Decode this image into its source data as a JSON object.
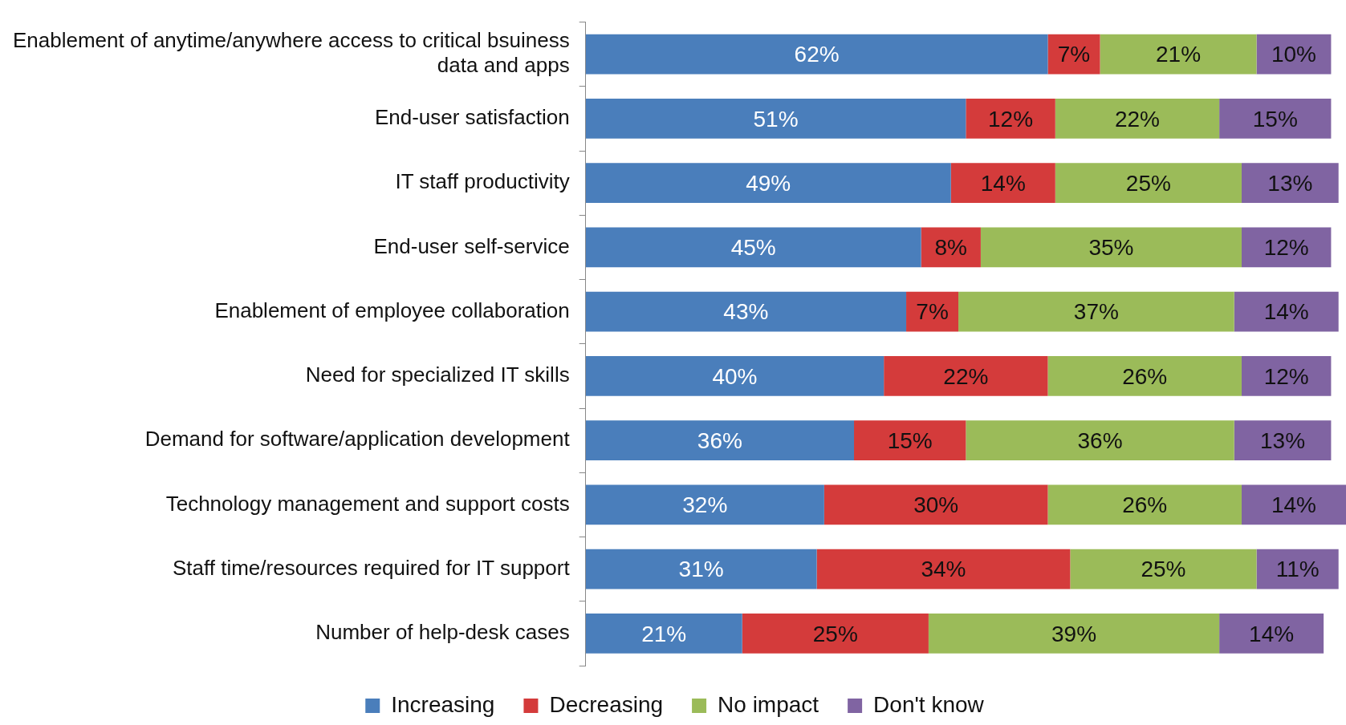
{
  "chart_data": {
    "type": "bar",
    "orientation": "horizontal",
    "stacked": true,
    "tick_labels": "y",
    "legend": "bottom",
    "categories": [
      "Enablement of anytime/anywhere access to critical bsuiness data and apps",
      "End-user satisfaction",
      "IT staff productivity",
      "End-user self-service",
      "Enablement of employee collaboration",
      "Need for specialized IT skills",
      "Demand for software/application development",
      "Technology management and support costs",
      "Staff time/resources required for IT support",
      "Number of help-desk cases"
    ],
    "series": [
      {
        "name": "Increasing",
        "color": "#4a7ebb",
        "values": [
          62,
          51,
          49,
          45,
          43,
          40,
          36,
          32,
          31,
          21
        ],
        "value_labels": [
          "62%",
          "51%",
          "49%",
          "45%",
          "43%",
          "40%",
          "36%",
          "32%",
          "31%",
          "21%"
        ]
      },
      {
        "name": "Decreasing",
        "color": "#d43b3b",
        "values": [
          7,
          12,
          14,
          8,
          7,
          22,
          15,
          30,
          34,
          25
        ],
        "value_labels": [
          "7%",
          "12%",
          "14%",
          "8%",
          "7%",
          "22%",
          "15%",
          "30%",
          "34%",
          "25%"
        ]
      },
      {
        "name": "No impact",
        "color": "#9bbb59",
        "values": [
          21,
          22,
          25,
          35,
          37,
          26,
          36,
          26,
          25,
          39
        ],
        "value_labels": [
          "21%",
          "22%",
          "25%",
          "35%",
          "37%",
          "26%",
          "36%",
          "26%",
          "25%",
          "39%"
        ]
      },
      {
        "name": "Don't know",
        "color": "#8064a2",
        "values": [
          10,
          15,
          13,
          12,
          14,
          12,
          13,
          14,
          11,
          14
        ],
        "value_labels": [
          "10%",
          "15%",
          "13%",
          "12%",
          "14%",
          "12%",
          "13%",
          "14%",
          "11%",
          "14%"
        ]
      }
    ]
  }
}
